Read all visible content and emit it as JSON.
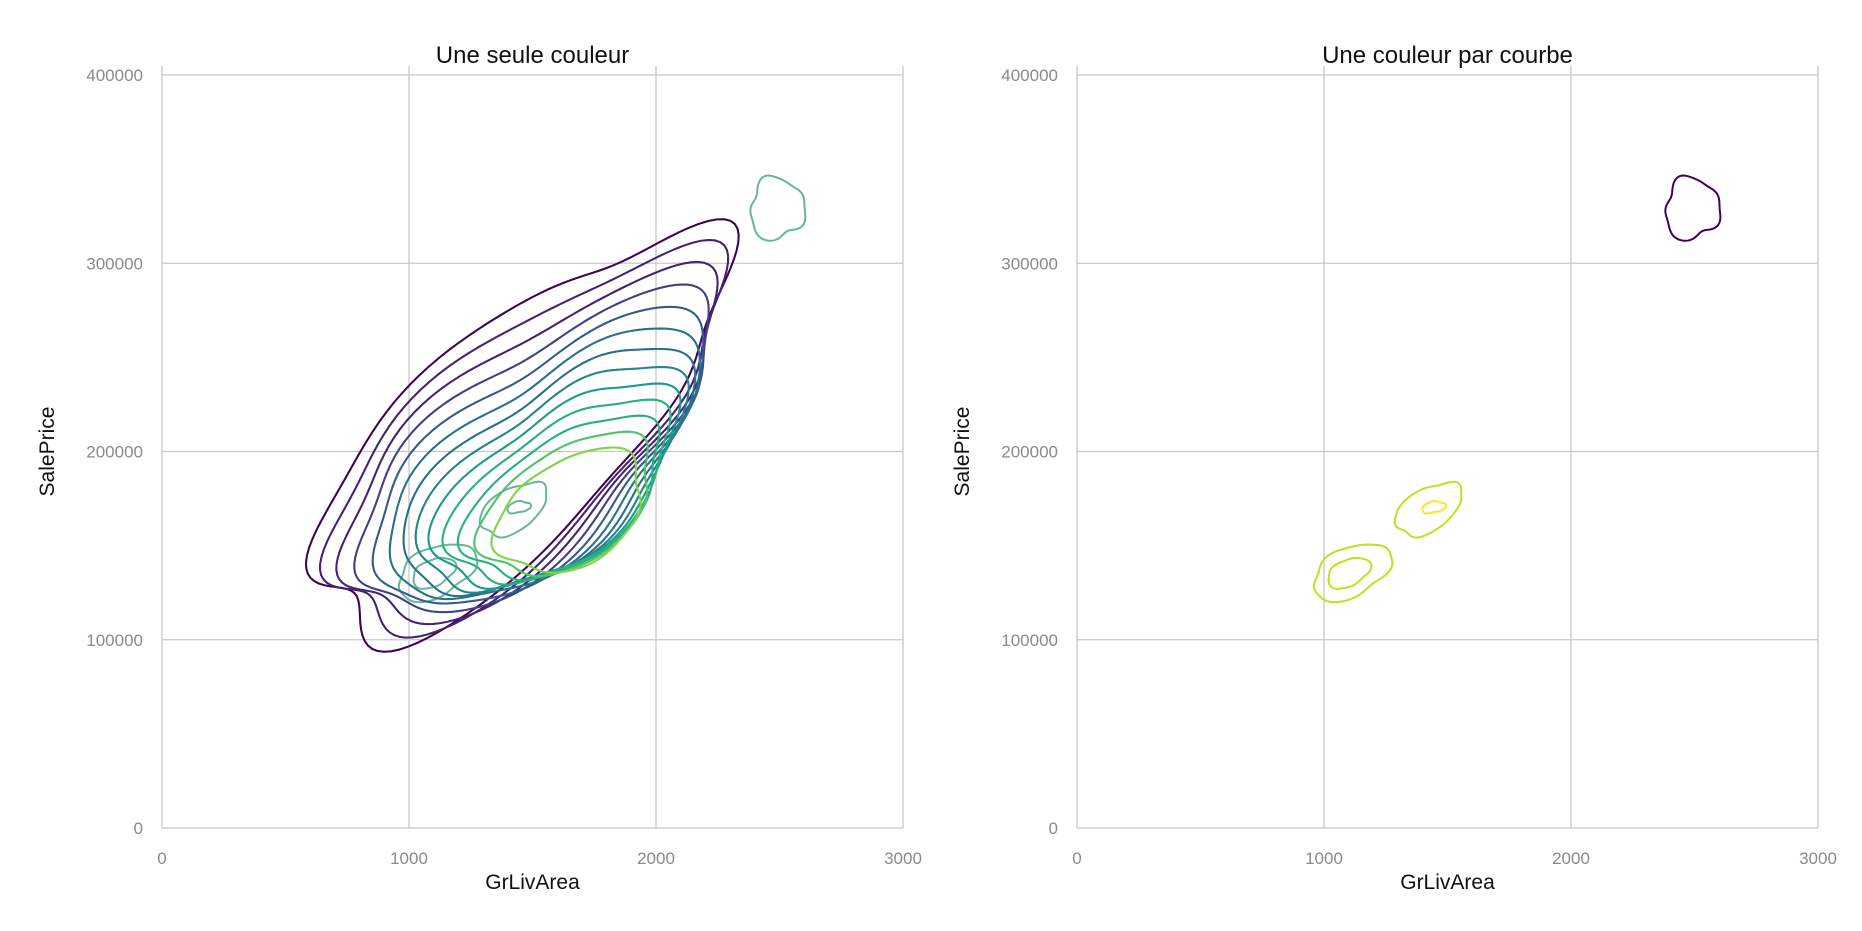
{
  "chart_data": [
    {
      "type": "contour",
      "title": "Une seule couleur",
      "xlabel": "GrLivArea",
      "ylabel": "SalePrice",
      "xlim": [
        0,
        3000
      ],
      "ylim": [
        0,
        400000
      ],
      "x_ticks": [
        {
          "value": 0,
          "label": "0"
        },
        {
          "value": 1000,
          "label": "1000"
        },
        {
          "value": 2000,
          "label": "2000"
        },
        {
          "value": 3000,
          "label": "3000"
        }
      ],
      "y_ticks": [
        {
          "value": 0,
          "label": "0"
        },
        {
          "value": 100000,
          "label": "100000"
        },
        {
          "value": 200000,
          "label": "200000"
        },
        {
          "value": 300000,
          "label": "300000"
        },
        {
          "value": 400000,
          "label": "400000"
        }
      ],
      "grid": true,
      "color_mode": "single",
      "line_color": "#66b59f",
      "density_levels": 17,
      "peaks": [
        {
          "x": 1080,
          "y": 135000
        },
        {
          "x": 1440,
          "y": 172000
        }
      ],
      "isolated_mode": {
        "x": 2490,
        "y": 329000
      }
    },
    {
      "type": "contour",
      "title": "Une couleur par courbe",
      "xlabel": "GrLivArea",
      "ylabel": "SalePrice",
      "xlim": [
        0,
        3000
      ],
      "ylim": [
        0,
        400000
      ],
      "x_ticks": [
        {
          "value": 0,
          "label": "0"
        },
        {
          "value": 1000,
          "label": "1000"
        },
        {
          "value": 2000,
          "label": "2000"
        },
        {
          "value": 3000,
          "label": "3000"
        }
      ],
      "y_ticks": [
        {
          "value": 0,
          "label": "0"
        },
        {
          "value": 100000,
          "label": "100000"
        },
        {
          "value": 200000,
          "label": "200000"
        },
        {
          "value": 300000,
          "label": "300000"
        },
        {
          "value": 400000,
          "label": "400000"
        }
      ],
      "grid": true,
      "color_mode": "per-level",
      "palette": "viridis",
      "density_levels": 17,
      "peaks": [
        {
          "x": 1080,
          "y": 135000
        },
        {
          "x": 1440,
          "y": 172000
        }
      ],
      "isolated_mode": {
        "x": 2490,
        "y": 329000
      }
    }
  ]
}
